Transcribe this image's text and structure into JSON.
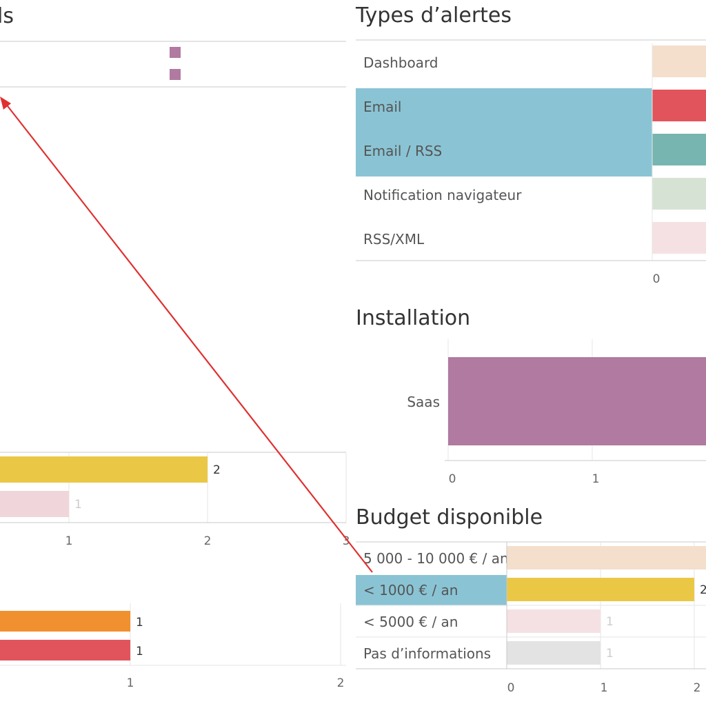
{
  "colors": {
    "selection": "#8ac4d4",
    "arrow": "#e03030",
    "grid": "#e6e6e6",
    "axis": "#c8c8c8",
    "legend_mark": "#b07aa1"
  },
  "left_panel": {
    "title_fragment": "ls"
  },
  "chart_data": [
    {
      "id": "types_alertes",
      "type": "bar",
      "title": "Types d’alertes",
      "orientation": "horizontal",
      "categories": [
        "Dashboard",
        "Email",
        "Email / RSS",
        "Notification navigateur",
        "RSS/XML"
      ],
      "selected": [
        "Email",
        "Email / RSS"
      ],
      "colors": [
        "#f4dfcc",
        "#e2545c",
        "#76b5b0",
        "#d6e3d4",
        "#f5e1e3"
      ],
      "x_ticks": [
        "0"
      ],
      "grid": false
    },
    {
      "id": "installation",
      "type": "bar",
      "title": "Installation",
      "orientation": "horizontal",
      "categories": [
        "Saas"
      ],
      "colors": [
        "#b07aa1"
      ],
      "x_ticks": [
        "0",
        "1"
      ],
      "grid": true
    },
    {
      "id": "budget_disponible",
      "type": "bar",
      "title": "Budget disponible",
      "orientation": "horizontal",
      "categories": [
        "5 000 - 10 000 € / an",
        "< 1000 € / an",
        "< 5000 € / an",
        "Pas d’informations"
      ],
      "values": [
        null,
        2,
        1,
        1
      ],
      "data_labels": [
        "",
        "2",
        "1",
        "1"
      ],
      "selected": [
        "< 1000 € / an"
      ],
      "colors": [
        "#f4dfcc",
        "#eac846",
        "#f5e1e3",
        "#e3e3e3"
      ],
      "x_ticks": [
        "0",
        "1",
        "2"
      ],
      "grid": true
    },
    {
      "id": "left_middle",
      "type": "bar",
      "orientation": "horizontal",
      "values": [
        2,
        1
      ],
      "data_labels": [
        "2",
        "1"
      ],
      "colors": [
        "#eac846",
        "#f0d6da"
      ],
      "x_ticks": [
        "1",
        "2",
        "3"
      ],
      "grid": true
    },
    {
      "id": "left_bottom",
      "type": "bar",
      "orientation": "horizontal",
      "values": [
        1,
        1
      ],
      "data_labels": [
        "1",
        "1"
      ],
      "colors": [
        "#f0902e",
        "#e2545c"
      ],
      "x_ticks": [
        "1",
        "2"
      ],
      "grid": true
    }
  ]
}
